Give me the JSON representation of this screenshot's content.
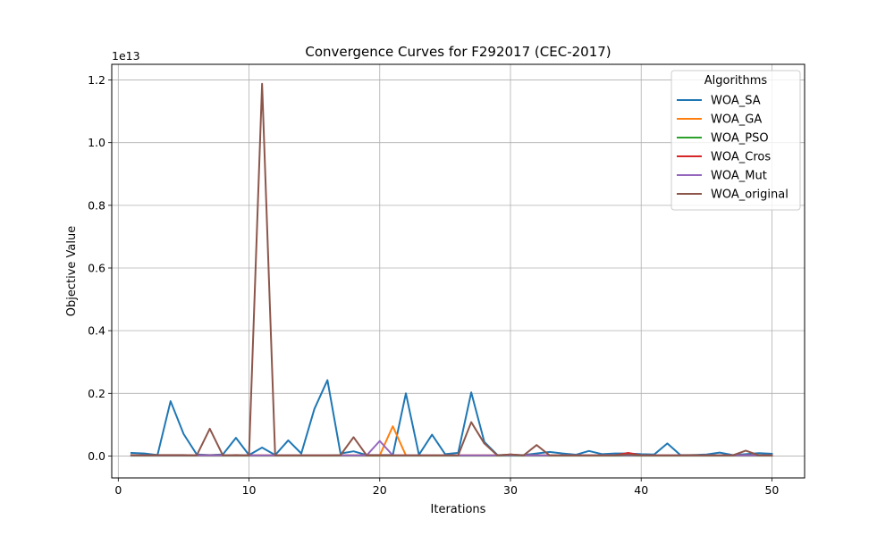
{
  "chart_data": {
    "type": "line",
    "title": "Convergence Curves for F292017 (CEC-2017)",
    "xlabel": "Iterations",
    "ylabel": "Objective Value",
    "y_multiplier_label": "1e13",
    "xlim": [
      -0.5,
      52.5
    ],
    "ylim": [
      -0.07,
      1.25
    ],
    "x_ticks": [
      0,
      10,
      20,
      30,
      40,
      50
    ],
    "y_ticks": [
      0.0,
      0.2,
      0.4,
      0.6,
      0.8,
      1.0,
      1.2
    ],
    "y_tick_labels": [
      "0.0",
      "0.2",
      "0.4",
      "0.6",
      "0.8",
      "1.0",
      "1.2"
    ],
    "grid": true,
    "legend_title": "Algorithms",
    "legend_position": "top-right",
    "x": [
      1,
      2,
      3,
      4,
      5,
      6,
      7,
      8,
      9,
      10,
      11,
      12,
      13,
      14,
      15,
      16,
      17,
      18,
      19,
      20,
      21,
      22,
      23,
      24,
      25,
      26,
      27,
      28,
      29,
      30,
      31,
      32,
      33,
      34,
      35,
      36,
      37,
      38,
      39,
      40,
      41,
      42,
      43,
      44,
      45,
      46,
      47,
      48,
      49,
      50
    ],
    "series": [
      {
        "name": "WOA_SA",
        "color": "#1f77b4",
        "values": [
          0.01,
          0.008,
          0.003,
          0.175,
          0.07,
          0.005,
          0.003,
          0.005,
          0.058,
          0.003,
          0.027,
          0.003,
          0.05,
          0.008,
          0.15,
          0.242,
          0.008,
          0.015,
          0.003,
          0.003,
          0.003,
          0.2,
          0.004,
          0.068,
          0.006,
          0.01,
          0.203,
          0.045,
          0.003,
          0.003,
          0.003,
          0.008,
          0.013,
          0.008,
          0.004,
          0.016,
          0.006,
          0.008,
          0.008,
          0.006,
          0.005,
          0.04,
          0.003,
          0.003,
          0.005,
          0.011,
          0.003,
          0.006,
          0.009,
          0.007
        ]
      },
      {
        "name": "WOA_GA",
        "color": "#ff7f0e",
        "values": [
          0.002,
          0.002,
          0.002,
          0.002,
          0.002,
          0.002,
          0.002,
          0.002,
          0.002,
          0.002,
          0.002,
          0.002,
          0.002,
          0.002,
          0.002,
          0.002,
          0.002,
          0.002,
          0.002,
          0.002,
          0.095,
          0.002,
          0.002,
          0.002,
          0.002,
          0.002,
          0.002,
          0.002,
          0.002,
          0.002,
          0.002,
          0.002,
          0.002,
          0.002,
          0.002,
          0.002,
          0.002,
          0.002,
          0.002,
          0.002,
          0.002,
          0.002,
          0.002,
          0.002,
          0.002,
          0.002,
          0.002,
          0.002,
          0.002,
          0.002
        ]
      },
      {
        "name": "WOA_PSO",
        "color": "#2ca02c",
        "values": [
          0.001,
          0.001,
          0.001,
          0.001,
          0.001,
          0.001,
          0.001,
          0.001,
          0.001,
          0.001,
          0.001,
          0.001,
          0.001,
          0.001,
          0.001,
          0.001,
          0.001,
          0.001,
          0.001,
          0.001,
          0.001,
          0.001,
          0.001,
          0.001,
          0.001,
          0.001,
          0.001,
          0.001,
          0.001,
          0.001,
          0.001,
          0.001,
          0.001,
          0.001,
          0.001,
          0.001,
          0.001,
          0.001,
          0.001,
          0.001,
          0.001,
          0.001,
          0.001,
          0.001,
          0.001,
          0.001,
          0.001,
          0.001,
          0.001,
          0.001
        ]
      },
      {
        "name": "WOA_Cros",
        "color": "#d62728",
        "values": [
          0.002,
          0.002,
          0.002,
          0.002,
          0.002,
          0.002,
          0.002,
          0.002,
          0.002,
          0.002,
          0.002,
          0.002,
          0.002,
          0.002,
          0.002,
          0.002,
          0.002,
          0.002,
          0.002,
          0.002,
          0.002,
          0.002,
          0.002,
          0.002,
          0.002,
          0.002,
          0.002,
          0.002,
          0.002,
          0.005,
          0.002,
          0.002,
          0.002,
          0.002,
          0.002,
          0.002,
          0.002,
          0.002,
          0.01,
          0.002,
          0.002,
          0.002,
          0.002,
          0.002,
          0.002,
          0.002,
          0.002,
          0.002,
          0.002,
          0.002
        ]
      },
      {
        "name": "WOA_Mut",
        "color": "#9467bd",
        "values": [
          0.002,
          0.002,
          0.002,
          0.002,
          0.002,
          0.002,
          0.002,
          0.002,
          0.002,
          0.002,
          0.002,
          0.002,
          0.002,
          0.002,
          0.002,
          0.002,
          0.002,
          0.002,
          0.002,
          0.048,
          0.002,
          0.002,
          0.002,
          0.002,
          0.002,
          0.002,
          0.002,
          0.002,
          0.002,
          0.002,
          0.002,
          0.002,
          0.002,
          0.002,
          0.002,
          0.002,
          0.002,
          0.002,
          0.002,
          0.002,
          0.002,
          0.002,
          0.002,
          0.002,
          0.002,
          0.002,
          0.002,
          0.002,
          0.002,
          0.002
        ]
      },
      {
        "name": "WOA_original",
        "color": "#8c564b",
        "values": [
          0.003,
          0.002,
          0.003,
          0.003,
          0.003,
          0.002,
          0.087,
          0.002,
          0.003,
          0.002,
          1.188,
          0.002,
          0.002,
          0.002,
          0.002,
          0.002,
          0.003,
          0.06,
          0.002,
          0.002,
          0.002,
          0.002,
          0.002,
          0.002,
          0.002,
          0.002,
          0.108,
          0.04,
          0.002,
          0.005,
          0.002,
          0.035,
          0.002,
          0.002,
          0.002,
          0.002,
          0.002,
          0.002,
          0.005,
          0.002,
          0.002,
          0.002,
          0.002,
          0.003,
          0.002,
          0.002,
          0.002,
          0.017,
          0.002,
          0.002
        ]
      }
    ]
  }
}
